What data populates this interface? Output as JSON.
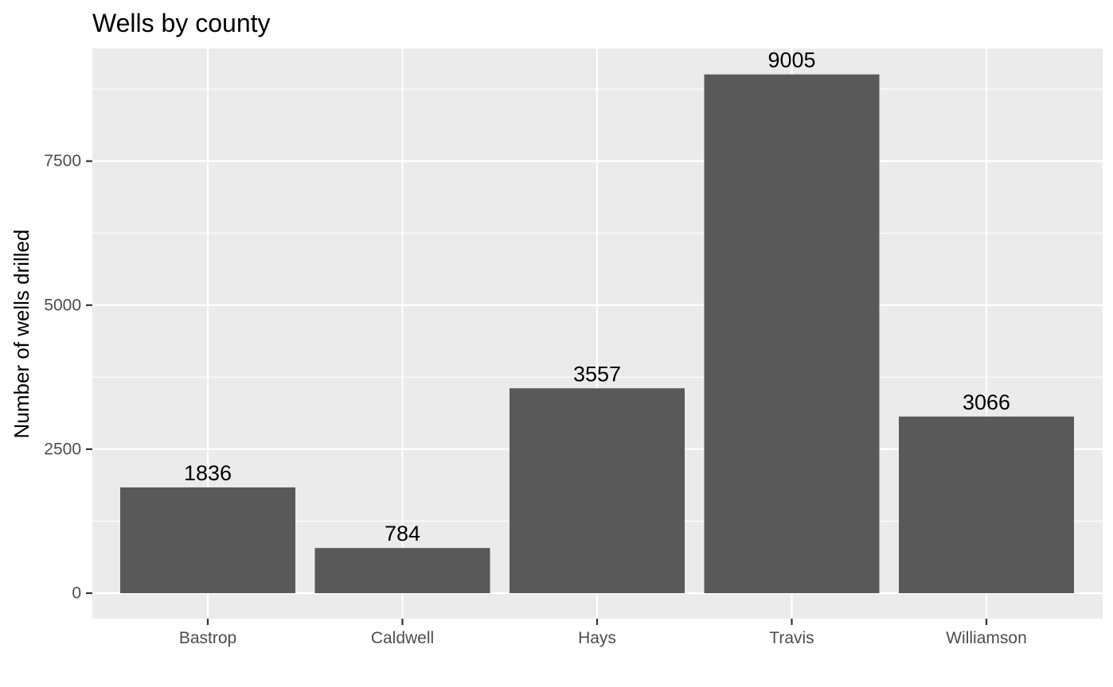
{
  "chart_data": {
    "type": "bar",
    "title": "Wells by county",
    "xlabel": "",
    "ylabel": "Number of wells drilled",
    "categories": [
      "Bastrop",
      "Caldwell",
      "Hays",
      "Travis",
      "Williamson"
    ],
    "values": [
      1836,
      784,
      3557,
      9005,
      3066
    ],
    "data_labels": [
      "1836",
      "784",
      "3557",
      "9005",
      "3066"
    ],
    "ylim": [
      0,
      9455
    ],
    "y_ticks": [
      0,
      2500,
      5000,
      7500
    ],
    "y_tick_labels": [
      "0",
      "2500",
      "5000",
      "7500"
    ],
    "y_minor_ticks": [
      1250,
      3750,
      6250,
      8750
    ],
    "grid": true,
    "legend": "none",
    "colors": {
      "bar": "#595959",
      "panel": "#ebebeb",
      "grid": "#ffffff",
      "tick": "#333333"
    }
  }
}
